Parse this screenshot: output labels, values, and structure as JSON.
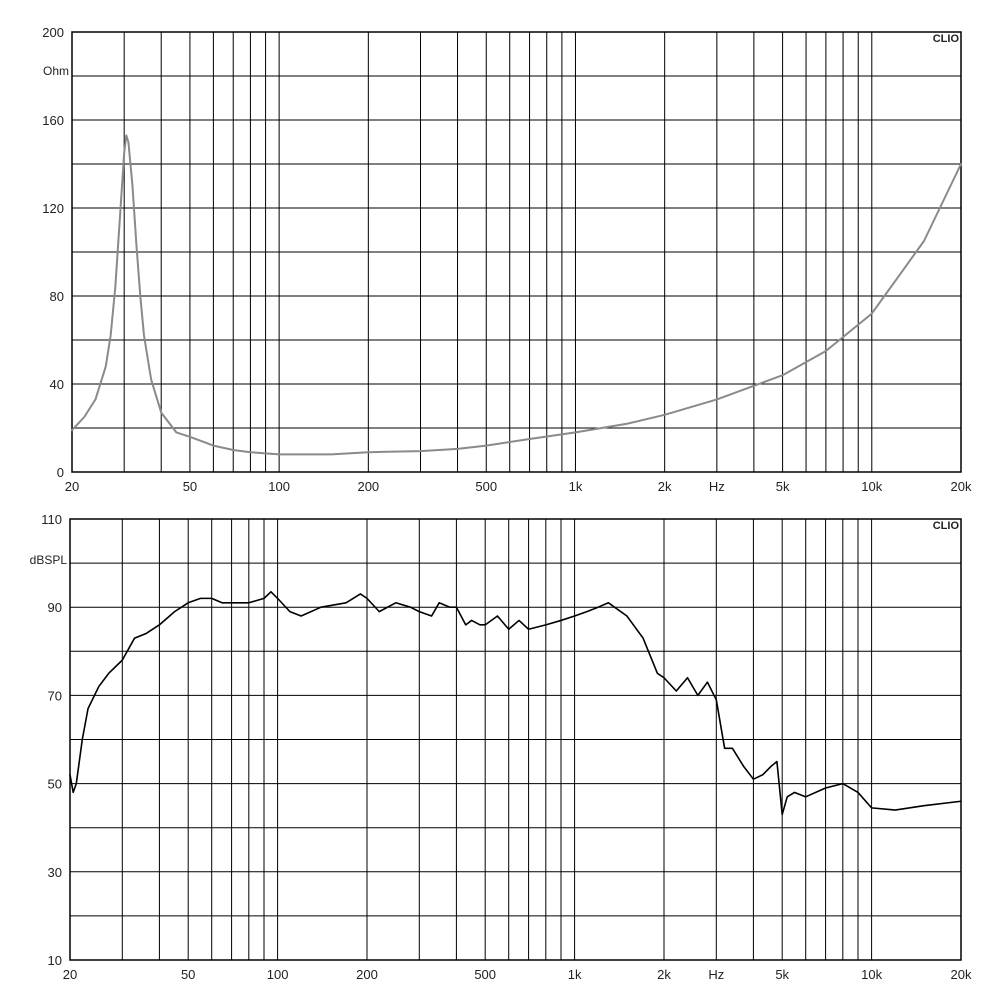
{
  "chart_data": [
    {
      "type": "line",
      "title": "",
      "brand": "CLIO",
      "xlabel": "Hz",
      "ylabel": "Ohm",
      "xscale": "log",
      "xlim": [
        20,
        20000
      ],
      "ylim": [
        0,
        200
      ],
      "grid": true,
      "y_ticks": [
        0,
        40,
        80,
        120,
        160,
        200
      ],
      "x_tick_labels": [
        {
          "value": 20,
          "label": "20"
        },
        {
          "value": 50,
          "label": "50"
        },
        {
          "value": 100,
          "label": "100"
        },
        {
          "value": 200,
          "label": "200"
        },
        {
          "value": 500,
          "label": "500"
        },
        {
          "value": 1000,
          "label": "1k"
        },
        {
          "value": 2000,
          "label": "2k"
        },
        {
          "value": 5000,
          "label": "5k"
        },
        {
          "value": 10000,
          "label": "10k"
        },
        {
          "value": 20000,
          "label": "20k"
        }
      ],
      "line_color": "#8a8a8a",
      "series": [
        {
          "x": [
            20,
            22,
            24,
            26,
            27,
            28,
            29,
            30,
            30.5,
            31,
            32,
            33,
            34,
            35,
            37,
            40,
            45,
            50,
            60,
            70,
            80,
            100,
            120,
            150,
            200,
            300,
            400,
            500,
            700,
            1000,
            1500,
            2000,
            3000,
            5000,
            7000,
            10000,
            15000,
            20000
          ],
          "y": [
            19,
            25,
            33,
            48,
            62,
            84,
            115,
            145,
            153,
            150,
            130,
            103,
            80,
            62,
            42,
            27,
            18,
            16,
            12,
            10,
            9,
            8,
            8,
            8,
            9,
            9.5,
            10.5,
            12,
            15,
            18,
            22,
            26,
            33,
            44,
            55,
            72,
            105,
            140
          ]
        }
      ]
    },
    {
      "type": "line",
      "title": "",
      "brand": "CLIO",
      "xlabel": "Hz",
      "ylabel": "dBSPL",
      "xscale": "log",
      "xlim": [
        20,
        20000
      ],
      "ylim": [
        10,
        110
      ],
      "grid": true,
      "y_ticks": [
        10,
        30,
        50,
        70,
        90,
        110
      ],
      "x_tick_labels": [
        {
          "value": 20,
          "label": "20"
        },
        {
          "value": 50,
          "label": "50"
        },
        {
          "value": 100,
          "label": "100"
        },
        {
          "value": 200,
          "label": "200"
        },
        {
          "value": 500,
          "label": "500"
        },
        {
          "value": 1000,
          "label": "1k"
        },
        {
          "value": 2000,
          "label": "2k"
        },
        {
          "value": 5000,
          "label": "5k"
        },
        {
          "value": 10000,
          "label": "10k"
        },
        {
          "value": 20000,
          "label": "20k"
        }
      ],
      "line_color": "#000000",
      "series": [
        {
          "x": [
            20,
            20.5,
            21,
            22,
            23,
            25,
            27,
            30,
            33,
            36,
            40,
            45,
            50,
            55,
            60,
            65,
            70,
            80,
            90,
            95,
            100,
            110,
            120,
            140,
            170,
            190,
            200,
            220,
            250,
            280,
            300,
            330,
            350,
            380,
            400,
            430,
            450,
            480,
            500,
            550,
            600,
            650,
            700,
            800,
            900,
            1000,
            1100,
            1200,
            1300,
            1500,
            1700,
            1900,
            2000,
            2200,
            2400,
            2600,
            2800,
            3000,
            3200,
            3400,
            3700,
            4000,
            4300,
            4600,
            4800,
            5000,
            5200,
            5500,
            6000,
            7000,
            8000,
            9000,
            10000,
            12000,
            15000,
            20000
          ],
          "y": [
            52,
            48,
            50,
            60,
            67,
            72,
            75,
            78,
            83,
            84,
            86,
            89,
            91,
            92,
            92,
            91,
            91,
            91,
            92,
            93.5,
            92,
            89,
            88,
            90,
            91,
            93,
            92,
            89,
            91,
            90,
            89,
            88,
            91,
            90,
            90,
            86,
            87,
            86,
            86,
            88,
            85,
            87,
            85,
            86,
            87,
            88,
            89,
            90,
            91,
            88,
            83,
            75,
            74,
            71,
            74,
            70,
            73,
            69,
            58,
            58,
            54,
            51,
            52,
            54,
            55,
            43,
            47,
            48,
            47,
            49,
            50,
            48,
            44.5,
            44,
            45,
            46
          ]
        }
      ]
    }
  ]
}
